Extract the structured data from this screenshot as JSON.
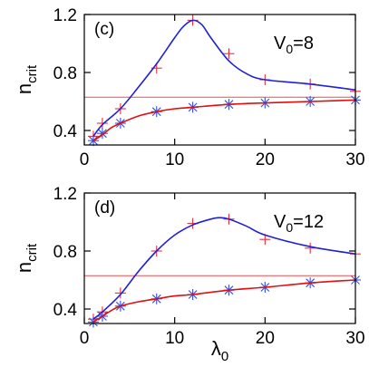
{
  "figure": {
    "xlabel": "λ",
    "xlabel_sub": "0"
  },
  "chart_data": [
    {
      "type": "line",
      "panel_label": "(c)",
      "annotation": {
        "main": "V",
        "sub": "0",
        "rest": "=8"
      },
      "ylabel": {
        "main": "n",
        "sub": "crit"
      },
      "xlim": [
        0,
        30
      ],
      "ylim": [
        0.3,
        1.2
      ],
      "xticks": [
        0,
        10,
        20,
        30
      ],
      "yticks": [
        0.4,
        0.8,
        1.2
      ],
      "reference_line": 0.63,
      "series": [
        {
          "marker": "plus",
          "color": "#e8303a",
          "x": [
            1,
            2,
            4,
            8,
            12,
            16,
            20,
            25,
            30
          ],
          "y": [
            0.36,
            0.45,
            0.55,
            0.83,
            1.16,
            0.93,
            0.75,
            0.72,
            0.67
          ]
        },
        {
          "marker": "star",
          "color": "#3050e0",
          "x": [
            1,
            2,
            4,
            8,
            12,
            16,
            20,
            25,
            30
          ],
          "y": [
            0.33,
            0.38,
            0.45,
            0.53,
            0.56,
            0.58,
            0.59,
            0.6,
            0.61
          ]
        },
        {
          "line": true,
          "color": "#2020d8",
          "x": [
            1,
            2,
            4,
            6,
            8,
            10,
            11,
            12,
            13,
            14,
            16,
            18,
            20,
            25,
            30
          ],
          "y": [
            0.36,
            0.44,
            0.55,
            0.7,
            0.86,
            1.04,
            1.12,
            1.16,
            1.13,
            1.04,
            0.88,
            0.79,
            0.75,
            0.72,
            0.68
          ]
        },
        {
          "line": true,
          "color": "#e01010",
          "x": [
            1,
            2,
            3,
            4,
            6,
            8,
            10,
            12,
            16,
            20,
            25,
            30
          ],
          "y": [
            0.33,
            0.37,
            0.42,
            0.45,
            0.5,
            0.53,
            0.55,
            0.56,
            0.58,
            0.59,
            0.6,
            0.61
          ]
        }
      ]
    },
    {
      "type": "line",
      "panel_label": "(d)",
      "annotation": {
        "main": "V",
        "sub": "0",
        "rest": "=12"
      },
      "ylabel": {
        "main": "n",
        "sub": "crit"
      },
      "xlim": [
        0,
        30
      ],
      "ylim": [
        0.3,
        1.2
      ],
      "xticks": [
        0,
        10,
        20,
        30
      ],
      "yticks": [
        0.4,
        0.8,
        1.2
      ],
      "reference_line": 0.63,
      "series": [
        {
          "marker": "plus",
          "color": "#e8303a",
          "x": [
            1,
            2,
            4,
            8,
            12,
            16,
            20,
            25,
            30
          ],
          "y": [
            0.33,
            0.38,
            0.51,
            0.8,
            0.99,
            1.02,
            0.88,
            0.82,
            0.78
          ]
        },
        {
          "marker": "star",
          "color": "#3050e0",
          "x": [
            1,
            2,
            4,
            8,
            12,
            16,
            20,
            25,
            30
          ],
          "y": [
            0.31,
            0.35,
            0.42,
            0.47,
            0.5,
            0.53,
            0.55,
            0.58,
            0.6
          ]
        },
        {
          "line": true,
          "color": "#2020d8",
          "x": [
            1,
            2,
            4,
            6,
            8,
            10,
            12,
            14,
            15,
            16,
            18,
            20,
            25,
            30
          ],
          "y": [
            0.33,
            0.38,
            0.5,
            0.66,
            0.8,
            0.91,
            0.98,
            1.02,
            1.03,
            1.02,
            0.97,
            0.91,
            0.83,
            0.78
          ]
        },
        {
          "line": true,
          "color": "#e01010",
          "x": [
            1,
            2,
            3,
            4,
            6,
            8,
            10,
            12,
            16,
            20,
            25,
            30
          ],
          "y": [
            0.31,
            0.35,
            0.39,
            0.42,
            0.45,
            0.47,
            0.49,
            0.5,
            0.53,
            0.55,
            0.58,
            0.6
          ]
        }
      ]
    }
  ]
}
